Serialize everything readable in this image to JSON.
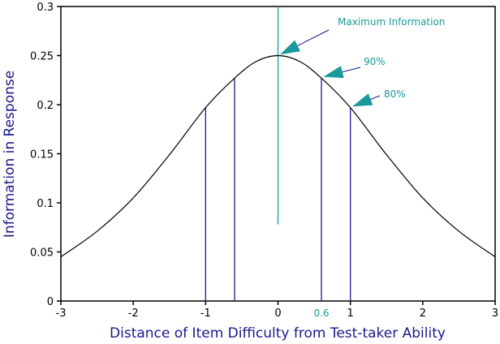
{
  "chart_data": {
    "type": "line",
    "title": "",
    "xlabel": "Distance of Item Difficulty from Test-taker Ability",
    "ylabel": "Information in Response",
    "xlim": [
      -3,
      3
    ],
    "ylim": [
      0,
      0.3
    ],
    "x_ticks": [
      -3,
      -2,
      -1,
      0,
      1,
      2,
      3
    ],
    "y_ticks": [
      0,
      0.05,
      0.1,
      0.15,
      0.2,
      0.25,
      0.3
    ],
    "x_tick_labels": [
      "-3",
      "-2",
      "-1",
      "0",
      "1",
      "2",
      "3"
    ],
    "y_tick_labels": [
      "0",
      "0.05",
      "0.1",
      "0.15",
      "0.2",
      "0.25",
      "0.3"
    ],
    "extra_x_tick": {
      "x": 0.6,
      "label": "0.6"
    },
    "grid": false,
    "curve": {
      "x": [
        -3,
        -2.5,
        -2,
        -1.5,
        -1,
        -0.6,
        -0.3,
        0,
        0.3,
        0.6,
        1,
        1.5,
        2,
        2.5,
        3
      ],
      "y": [
        0.045,
        0.071,
        0.105,
        0.149,
        0.197,
        0.227,
        0.244,
        0.25,
        0.244,
        0.227,
        0.197,
        0.149,
        0.105,
        0.071,
        0.045
      ]
    },
    "vertical_lines": [
      {
        "x": -1,
        "y_top": 0.197,
        "color": "#1a1a8c"
      },
      {
        "x": -0.6,
        "y_top": 0.227,
        "color": "#1a1a8c"
      },
      {
        "x": 0.6,
        "y_top": 0.227,
        "color": "#1a1a8c"
      },
      {
        "x": 1,
        "y_top": 0.197,
        "color": "#1a1a8c"
      },
      {
        "x": 0,
        "y_bottom": 0.078,
        "y_top": 0.3,
        "color": "#1a9a9a"
      }
    ],
    "annotations": [
      {
        "text": "Maximum Information",
        "point_x": 0,
        "point_y": 0.25
      },
      {
        "text": "90%",
        "point_x": 0.6,
        "point_y": 0.227
      },
      {
        "text": "80%",
        "point_x": 1,
        "point_y": 0.197
      }
    ],
    "colors": {
      "curve": "#000000",
      "axis": "#000000",
      "labels": "#1a1a8c",
      "annotation": "#1a9a9a"
    }
  }
}
